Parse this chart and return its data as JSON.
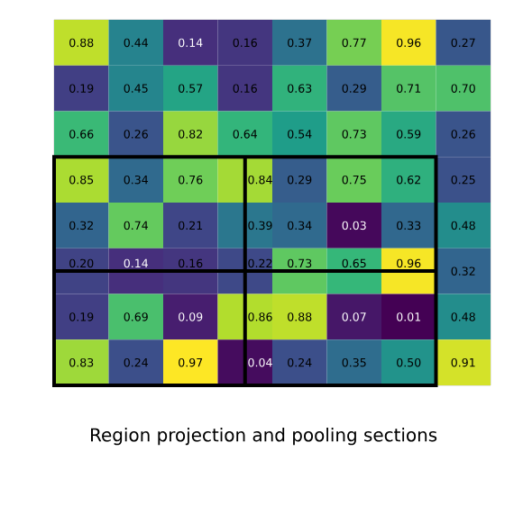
{
  "chart_data": {
    "type": "heatmap",
    "categories": [
      null,
      null,
      null,
      null,
      null,
      null,
      null,
      null
    ],
    "y_categories": [
      null,
      null,
      null,
      null,
      null,
      null,
      null,
      null
    ],
    "cells": [
      [
        0.88,
        0.44,
        0.14,
        0.16,
        0.37,
        0.77,
        0.96,
        0.27
      ],
      [
        0.19,
        0.45,
        0.57,
        0.16,
        0.63,
        0.29,
        0.71,
        0.7
      ],
      [
        0.66,
        0.26,
        0.82,
        0.64,
        0.54,
        0.73,
        0.59,
        0.26
      ],
      [
        0.85,
        0.34,
        0.76,
        0.84,
        0.29,
        0.75,
        0.62,
        0.25
      ],
      [
        0.32,
        0.74,
        0.21,
        0.39,
        0.34,
        0.03,
        0.33,
        0.48
      ],
      [
        0.2,
        0.14,
        0.16,
        0.22,
        0.73,
        0.65,
        0.96,
        0.32
      ],
      [
        0.19,
        0.69,
        0.09,
        0.86,
        0.88,
        0.07,
        0.01,
        0.48
      ],
      [
        0.83,
        0.24,
        0.97,
        0.04,
        0.24,
        0.35,
        0.5,
        0.91
      ]
    ],
    "cell_labels": [
      [
        "0.88",
        "0.44",
        "0.14",
        "0.16",
        "0.37",
        "0.77",
        "0.96",
        "0.27"
      ],
      [
        "0.19",
        "0.45",
        "0.57",
        "0.16",
        "0.63",
        "0.29",
        "0.71",
        "0.70"
      ],
      [
        "0.66",
        "0.26",
        "0.82",
        "0.64",
        "0.54",
        "0.73",
        "0.59",
        "0.26"
      ],
      [
        "0.85",
        "0.34",
        "0.76",
        "0.84",
        "0.29",
        "0.75",
        "0.62",
        "0.25"
      ],
      [
        "0.32",
        "0.74",
        "0.21",
        "0.39",
        "0.34",
        "0.03",
        "0.33",
        "0.48"
      ],
      [
        "0.20",
        "0.14",
        "0.16",
        "0.22",
        "0.73",
        "0.65",
        "0.96",
        "0.32"
      ],
      [
        "0.19",
        "0.69",
        "0.09",
        "0.86",
        "0.88",
        "0.07",
        "0.01",
        "0.48"
      ],
      [
        "0.83",
        "0.24",
        "0.97",
        "0.04",
        "0.24",
        "0.35",
        "0.50",
        "0.91"
      ]
    ],
    "annotations": [
      "Region projection and pooling sections"
    ]
  }
}
